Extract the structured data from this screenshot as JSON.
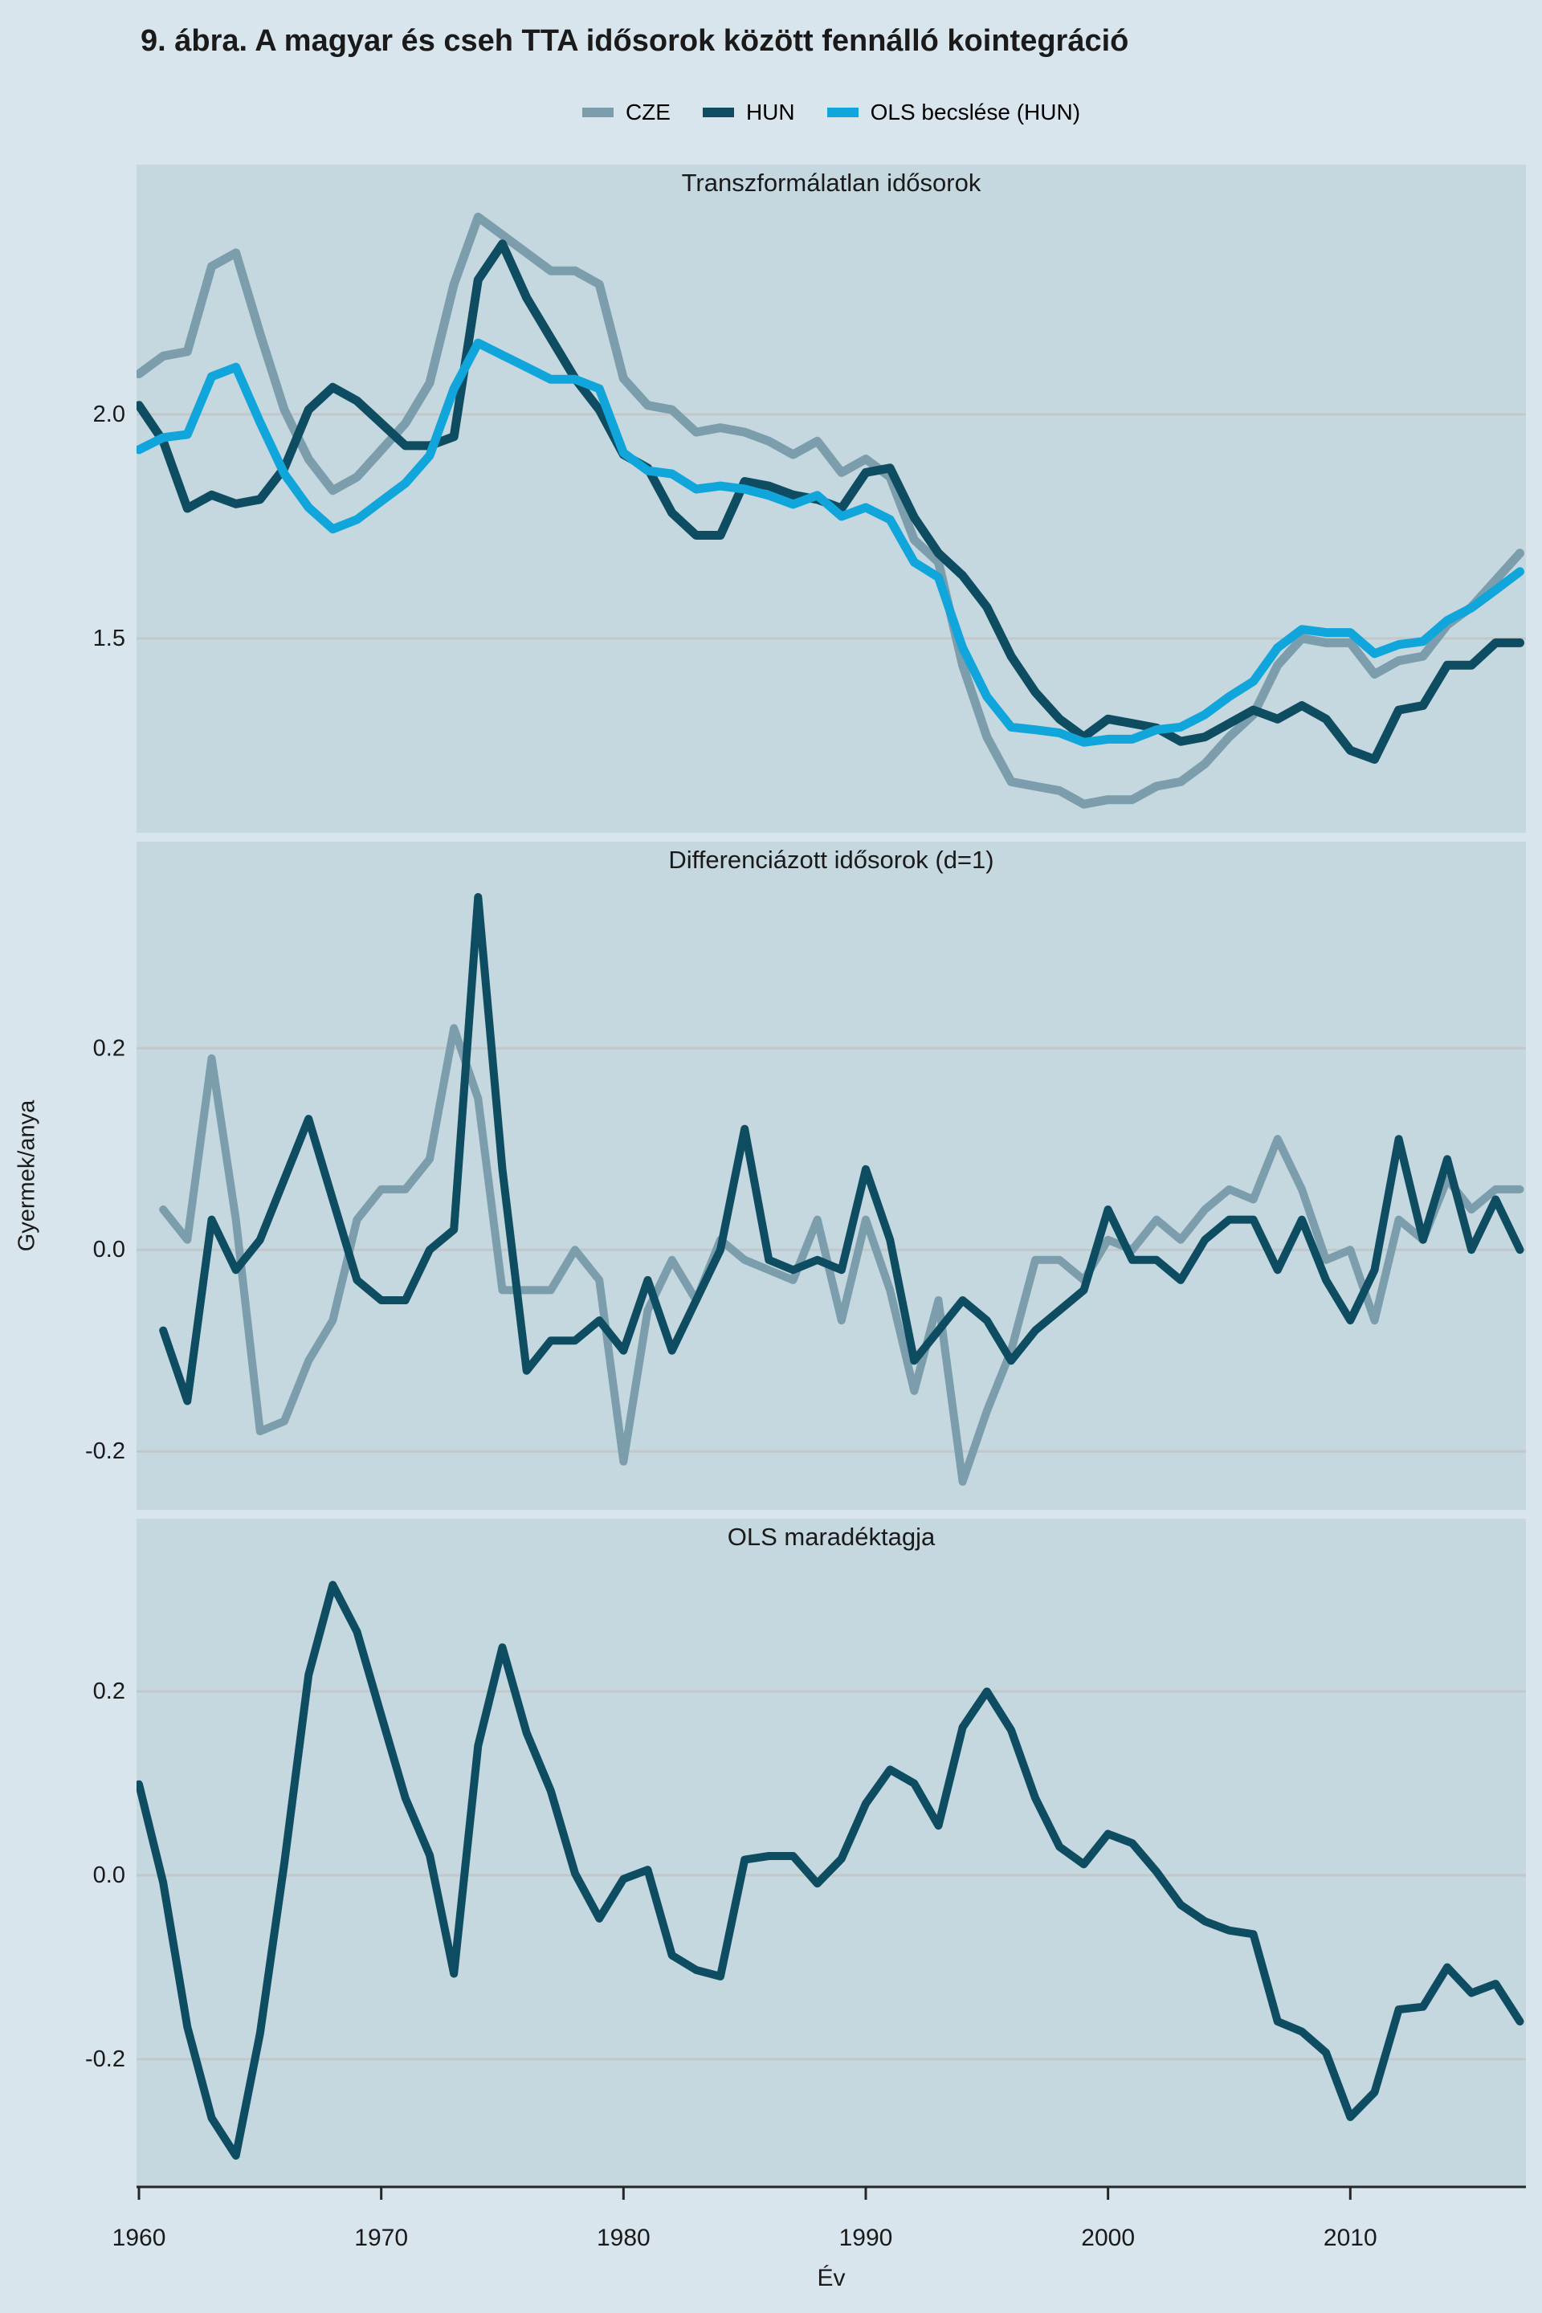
{
  "figure": {
    "title": "9. ábra. A magyar és cseh TTA idősorok között fennálló kointegráció"
  },
  "colors": {
    "cze": "#7b9dac",
    "hun": "#0e4d61",
    "ols": "#10a6dc",
    "panel_bg": "#c5d7df",
    "page_bg": "#d8e5ec",
    "grid": "#c2c7c9",
    "axis": "#262626",
    "text": "#1a1a1a"
  },
  "legend": {
    "items": [
      {
        "label": "CZE",
        "color": "cze"
      },
      {
        "label": "HUN",
        "color": "hun"
      },
      {
        "label": "OLS becslése (HUN)",
        "color": "ols"
      }
    ]
  },
  "axes": {
    "xlabel": "Év",
    "ylabel": "Gyermek/anya",
    "x_ticks": [
      1960,
      1970,
      1980,
      1990,
      2000,
      2010
    ],
    "xlim": [
      1959.9,
      2017.25
    ]
  },
  "chart_data": [
    {
      "type": "line",
      "title": "Transzformálatlan idősorok",
      "ylim": [
        1.066,
        2.557
      ],
      "grid": true,
      "yticks": [
        {
          "v": 2.0,
          "label": "2.0"
        },
        {
          "v": 1.5,
          "label": "1.5"
        }
      ],
      "years": [
        1960,
        1961,
        1962,
        1963,
        1964,
        1965,
        1966,
        1967,
        1968,
        1969,
        1970,
        1971,
        1972,
        1973,
        1974,
        1975,
        1976,
        1977,
        1978,
        1979,
        1980,
        1981,
        1982,
        1983,
        1984,
        1985,
        1986,
        1987,
        1988,
        1989,
        1990,
        1991,
        1992,
        1993,
        1994,
        1995,
        1996,
        1997,
        1998,
        1999,
        2000,
        2001,
        2002,
        2003,
        2004,
        2005,
        2006,
        2007,
        2008,
        2009,
        2010,
        2011,
        2012,
        2013,
        2014,
        2015,
        2016,
        2017
      ],
      "series": [
        {
          "name": "CZE",
          "color": "cze",
          "values": [
            2.09,
            2.13,
            2.14,
            2.33,
            2.36,
            2.18,
            2.01,
            1.9,
            1.83,
            1.86,
            1.92,
            1.98,
            2.07,
            2.29,
            2.44,
            2.4,
            2.36,
            2.32,
            2.32,
            2.29,
            2.08,
            2.02,
            2.01,
            1.96,
            1.97,
            1.96,
            1.94,
            1.91,
            1.94,
            1.87,
            1.9,
            1.86,
            1.72,
            1.67,
            1.44,
            1.28,
            1.18,
            1.17,
            1.16,
            1.13,
            1.14,
            1.14,
            1.17,
            1.18,
            1.22,
            1.28,
            1.33,
            1.44,
            1.5,
            1.49,
            1.49,
            1.42,
            1.45,
            1.46,
            1.53,
            1.57,
            1.63,
            1.69
          ]
        },
        {
          "name": "HUN",
          "color": "hun",
          "values": [
            2.02,
            1.94,
            1.79,
            1.82,
            1.8,
            1.81,
            1.88,
            2.01,
            2.06,
            2.03,
            1.98,
            1.93,
            1.93,
            1.95,
            2.3,
            2.38,
            2.26,
            2.17,
            2.08,
            2.01,
            1.91,
            1.88,
            1.78,
            1.73,
            1.73,
            1.85,
            1.84,
            1.82,
            1.81,
            1.79,
            1.87,
            1.88,
            1.77,
            1.69,
            1.64,
            1.57,
            1.46,
            1.38,
            1.32,
            1.28,
            1.32,
            1.31,
            1.3,
            1.27,
            1.28,
            1.31,
            1.34,
            1.32,
            1.35,
            1.32,
            1.25,
            1.23,
            1.34,
            1.35,
            1.44,
            1.44,
            1.49,
            1.49
          ]
        },
        {
          "name": "OLS becslése (HUN)",
          "color": "ols",
          "values": [
            1.921,
            1.948,
            1.955,
            2.084,
            2.105,
            1.982,
            1.867,
            1.792,
            1.744,
            1.765,
            1.806,
            1.846,
            1.908,
            2.057,
            2.159,
            2.132,
            2.105,
            2.078,
            2.078,
            2.057,
            1.914,
            1.874,
            1.867,
            1.833,
            1.84,
            1.833,
            1.819,
            1.799,
            1.819,
            1.772,
            1.792,
            1.765,
            1.67,
            1.636,
            1.479,
            1.37,
            1.302,
            1.296,
            1.289,
            1.268,
            1.275,
            1.275,
            1.296,
            1.302,
            1.33,
            1.37,
            1.404,
            1.479,
            1.52,
            1.513,
            1.513,
            1.466,
            1.486,
            1.493,
            1.54,
            1.568,
            1.608,
            1.649
          ]
        }
      ]
    },
    {
      "type": "line",
      "title": "Differenciázott idősorok (d=1)",
      "ylim": [
        -0.258,
        0.405
      ],
      "grid": true,
      "yticks": [
        {
          "v": 0.2,
          "label": "0.2"
        },
        {
          "v": 0.0,
          "label": "0.0"
        },
        {
          "v": -0.2,
          "label": "-0.2"
        }
      ],
      "years": [
        1961,
        1962,
        1963,
        1964,
        1965,
        1966,
        1967,
        1968,
        1969,
        1970,
        1971,
        1972,
        1973,
        1974,
        1975,
        1976,
        1977,
        1978,
        1979,
        1980,
        1981,
        1982,
        1983,
        1984,
        1985,
        1986,
        1987,
        1988,
        1989,
        1990,
        1991,
        1992,
        1993,
        1994,
        1995,
        1996,
        1997,
        1998,
        1999,
        2000,
        2001,
        2002,
        2003,
        2004,
        2005,
        2006,
        2007,
        2008,
        2009,
        2010,
        2011,
        2012,
        2013,
        2014,
        2015,
        2016,
        2017
      ],
      "series": [
        {
          "name": "CZE",
          "color": "cze",
          "values": [
            0.04,
            0.01,
            0.19,
            0.03,
            -0.18,
            -0.17,
            -0.11,
            -0.07,
            0.03,
            0.06,
            0.06,
            0.09,
            0.22,
            0.15,
            -0.04,
            -0.04,
            -0.04,
            0.0,
            -0.03,
            -0.21,
            -0.06,
            -0.01,
            -0.05,
            0.01,
            -0.01,
            -0.02,
            -0.03,
            0.03,
            -0.07,
            0.03,
            -0.04,
            -0.14,
            -0.05,
            -0.23,
            -0.16,
            -0.1,
            -0.01,
            -0.01,
            -0.03,
            0.01,
            0.0,
            0.03,
            0.01,
            0.04,
            0.06,
            0.05,
            0.11,
            0.06,
            -0.01,
            0.0,
            -0.07,
            0.03,
            0.01,
            0.07,
            0.04,
            0.06,
            0.06
          ]
        },
        {
          "name": "HUN",
          "color": "hun",
          "values": [
            -0.08,
            -0.15,
            0.03,
            -0.02,
            0.01,
            0.07,
            0.13,
            0.05,
            -0.03,
            -0.05,
            -0.05,
            0.0,
            0.02,
            0.35,
            0.08,
            -0.12,
            -0.09,
            -0.09,
            -0.07,
            -0.1,
            -0.03,
            -0.1,
            -0.05,
            0.0,
            0.12,
            -0.01,
            -0.02,
            -0.01,
            -0.02,
            0.08,
            0.01,
            -0.11,
            -0.08,
            -0.05,
            -0.07,
            -0.11,
            -0.08,
            -0.06,
            -0.04,
            0.04,
            -0.01,
            -0.01,
            -0.03,
            0.01,
            0.03,
            0.03,
            -0.02,
            0.03,
            -0.03,
            -0.07,
            -0.02,
            0.11,
            0.01,
            0.09,
            0.0,
            0.05,
            0.0
          ]
        }
      ]
    },
    {
      "type": "line",
      "title": "OLS maradéktagja",
      "ylim": [
        -0.339,
        0.388
      ],
      "grid": true,
      "yticks": [
        {
          "v": 0.2,
          "label": "0.2"
        },
        {
          "v": 0.0,
          "label": "0.0"
        },
        {
          "v": -0.2,
          "label": "-0.2"
        }
      ],
      "years": [
        1960,
        1961,
        1962,
        1963,
        1964,
        1965,
        1966,
        1967,
        1968,
        1969,
        1970,
        1971,
        1972,
        1973,
        1974,
        1975,
        1976,
        1977,
        1978,
        1979,
        1980,
        1981,
        1982,
        1983,
        1984,
        1985,
        1986,
        1987,
        1988,
        1989,
        1990,
        1991,
        1992,
        1993,
        1994,
        1995,
        1996,
        1997,
        1998,
        1999,
        2000,
        2001,
        2002,
        2003,
        2004,
        2005,
        2006,
        2007,
        2008,
        2009,
        2010,
        2011,
        2012,
        2013,
        2014,
        2015,
        2016,
        2017
      ],
      "series": [
        {
          "name": "OLS maradéktag",
          "color": "hun",
          "values": [
            0.099,
            -0.008,
            -0.165,
            -0.264,
            -0.305,
            -0.172,
            0.013,
            0.218,
            0.316,
            0.265,
            0.174,
            0.084,
            0.022,
            -0.107,
            0.141,
            0.248,
            0.155,
            0.092,
            0.002,
            -0.047,
            -0.004,
            0.006,
            -0.087,
            -0.103,
            -0.11,
            0.017,
            0.021,
            0.021,
            -0.009,
            0.018,
            0.078,
            0.115,
            0.1,
            0.054,
            0.161,
            0.2,
            0.158,
            0.084,
            0.031,
            0.012,
            0.045,
            0.035,
            0.004,
            -0.032,
            -0.05,
            -0.06,
            -0.064,
            -0.159,
            -0.17,
            -0.193,
            -0.263,
            -0.236,
            -0.146,
            -0.143,
            -0.1,
            -0.128,
            -0.118,
            -0.159
          ]
        }
      ]
    }
  ]
}
